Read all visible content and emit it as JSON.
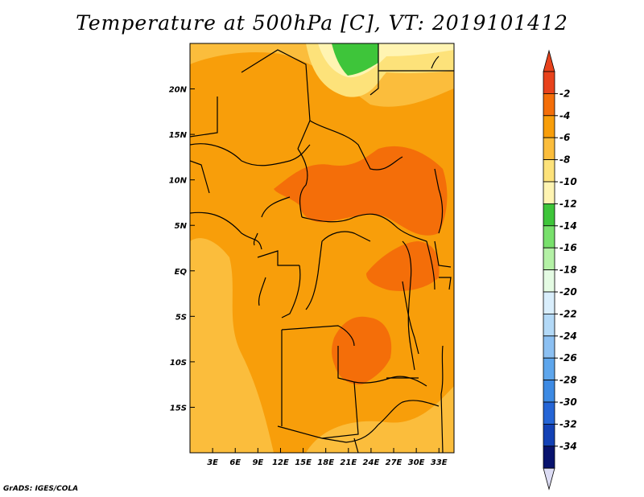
{
  "title": "Temperature at 500hPa [C], VT: 2019101412",
  "credit": "GrADS: IGES/COLA",
  "axes": {
    "lat_labels": [
      {
        "label": "20N",
        "lat": 20
      },
      {
        "label": "15N",
        "lat": 15
      },
      {
        "label": "10N",
        "lat": 10
      },
      {
        "label": "5N",
        "lat": 5
      },
      {
        "label": "EQ",
        "lat": 0
      },
      {
        "label": "5S",
        "lat": -5
      },
      {
        "label": "10S",
        "lat": -10
      },
      {
        "label": "15S",
        "lat": -15
      }
    ],
    "lon_labels": [
      {
        "label": "3E",
        "lon": 3
      },
      {
        "label": "6E",
        "lon": 6
      },
      {
        "label": "9E",
        "lon": 9
      },
      {
        "label": "12E",
        "lon": 12
      },
      {
        "label": "15E",
        "lon": 15
      },
      {
        "label": "18E",
        "lon": 18
      },
      {
        "label": "21E",
        "lon": 21
      },
      {
        "label": "24E",
        "lon": 24
      },
      {
        "label": "27E",
        "lon": 27
      },
      {
        "label": "30E",
        "lon": 30
      },
      {
        "label": "33E",
        "lon": 33
      }
    ],
    "lon_range": [
      0,
      35
    ],
    "lat_range": [
      -20,
      25
    ]
  },
  "colorbar": {
    "labels": [
      "-2",
      "-4",
      "-6",
      "-8",
      "-10",
      "-12",
      "-14",
      "-16",
      "-18",
      "-20",
      "-22",
      "-24",
      "-26",
      "-28",
      "-30",
      "-32",
      "-34"
    ],
    "colors": [
      "#e8421c",
      "#f46e09",
      "#f89e0a",
      "#fbbd3c",
      "#fde27a",
      "#fff4b2",
      "#3ec53a",
      "#78e06c",
      "#b4f1a6",
      "#e4fbe3",
      "#d9eefc",
      "#b3d9f7",
      "#8cc0f2",
      "#5ea6ec",
      "#3d8ae3",
      "#2565d6",
      "#1341b5",
      "#08136e"
    ],
    "top_arrow_color": "#e8421c",
    "bottom_arrow_color": "#dcdcf4"
  },
  "colors": {
    "background_field": "#f89e0a",
    "warm_core": "#f46e09",
    "cool_edge": "#fbbd3c",
    "pale": "#fde27a",
    "palest": "#fff4b2",
    "green": "#3ec53a"
  }
}
